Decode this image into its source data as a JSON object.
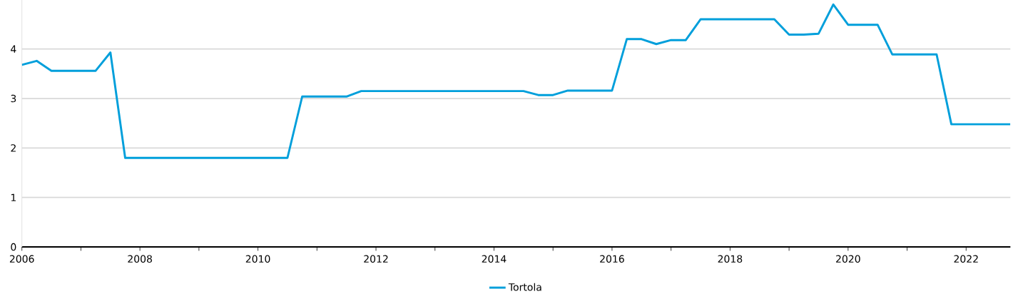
{
  "chart_data": {
    "type": "line",
    "x": [
      2006,
      2006.25,
      2006.5,
      2006.75,
      2007,
      2007.25,
      2007.5,
      2007.75,
      2008,
      2008.25,
      2008.5,
      2008.75,
      2009,
      2009.25,
      2009.5,
      2009.75,
      2010,
      2010.25,
      2010.5,
      2010.75,
      2011,
      2011.25,
      2011.5,
      2011.75,
      2012,
      2012.25,
      2012.5,
      2012.75,
      2013,
      2013.25,
      2013.5,
      2013.75,
      2014,
      2014.25,
      2014.5,
      2014.75,
      2015,
      2015.25,
      2015.5,
      2015.75,
      2016,
      2016.25,
      2016.5,
      2016.75,
      2017,
      2017.25,
      2017.5,
      2017.75,
      2018,
      2018.25,
      2018.5,
      2018.75,
      2019,
      2019.25,
      2019.5,
      2019.75,
      2020,
      2020.25,
      2020.5,
      2020.75,
      2021,
      2021.25,
      2021.5,
      2021.75,
      2022,
      2022.25,
      2022.5,
      2022.75
    ],
    "series": [
      {
        "name": "Tortola",
        "color": "#009fdb",
        "values": [
          3.68,
          3.76,
          3.56,
          3.56,
          3.56,
          3.56,
          3.93,
          1.8,
          1.8,
          1.8,
          1.8,
          1.8,
          1.8,
          1.8,
          1.8,
          1.8,
          1.8,
          1.8,
          1.8,
          3.04,
          3.04,
          3.04,
          3.04,
          3.15,
          3.15,
          3.15,
          3.15,
          3.15,
          3.15,
          3.15,
          3.15,
          3.15,
          3.15,
          3.15,
          3.15,
          3.07,
          3.07,
          3.16,
          3.16,
          3.16,
          3.16,
          4.2,
          4.2,
          4.1,
          4.18,
          4.18,
          4.6,
          4.6,
          4.6,
          4.6,
          4.6,
          4.6,
          4.29,
          4.29,
          4.31,
          4.9,
          4.49,
          4.49,
          4.49,
          3.89,
          3.89,
          3.89,
          3.89,
          2.48,
          2.48,
          2.48,
          2.48,
          2.48
        ]
      }
    ],
    "xlim": [
      2006,
      2022.75
    ],
    "ylim": [
      0,
      5
    ],
    "xticks": [
      2006,
      {
        "value": 2007,
        "label": null
      },
      2008,
      {
        "value": 2009,
        "label": null
      },
      2010,
      {
        "value": 2011,
        "label": null
      },
      2012,
      {
        "value": 2013,
        "label": null
      },
      2014,
      {
        "value": 2015,
        "label": null
      },
      2016,
      {
        "value": 2017,
        "label": null
      },
      2018,
      {
        "value": 2019,
        "label": null
      },
      2020,
      {
        "value": 2021,
        "label": null
      },
      2022
    ],
    "yticks": [
      0,
      1,
      2,
      3,
      4
    ],
    "grid": "y",
    "legend": "bottom",
    "line_style": "solid"
  }
}
